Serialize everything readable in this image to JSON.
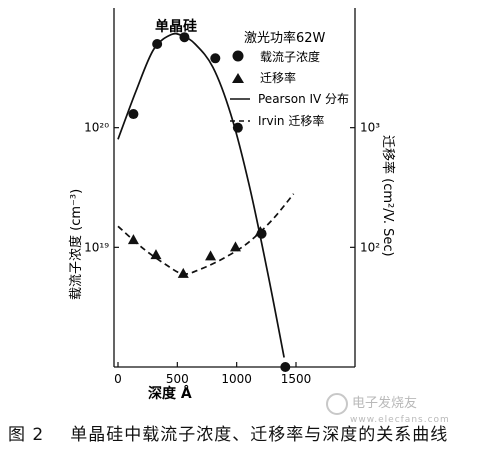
{
  "chart_data": {
    "type": "scatter",
    "title": "单晶硅",
    "annotation": "激光功率62W",
    "xlabel": "深度 Å",
    "ylabel_left": "载流子浓度 (cm⁻³)",
    "ylabel_right": "迁移率 (cm²/V. Sec)",
    "x_ticks": [
      "0",
      "500",
      "1000",
      "1500"
    ],
    "left_ticks": [
      {
        "label": "10²⁰",
        "value": 1e+20
      },
      {
        "label": "10¹⁹",
        "value": 1e+19
      }
    ],
    "right_ticks": [
      {
        "label": "10³",
        "value": 1000
      },
      {
        "label": "10²",
        "value": 100
      }
    ],
    "xlim": [
      -50,
      2000
    ],
    "ylim_left": [
      1e+18,
      1e+21
    ],
    "ylim_right": [
      10,
      10000
    ],
    "log_y": true,
    "grid": false,
    "legend_position": "top-right",
    "series": [
      {
        "name": "载流子浓度",
        "axis": "left",
        "marker": "circle",
        "type": "scatter",
        "x": [
          130,
          330,
          560,
          820,
          1010,
          1210,
          1410
        ],
        "y": [
          1.3e+20,
          5e+20,
          5.7e+20,
          3.8e+20,
          1e+20,
          1.3e+19,
          1e+18
        ]
      },
      {
        "name": "迁移率",
        "axis": "right",
        "marker": "triangle",
        "type": "scatter",
        "x": [
          130,
          320,
          550,
          780,
          990,
          1200
        ],
        "y": [
          115,
          86,
          60,
          84,
          100,
          134
        ]
      },
      {
        "name": "Pearson IV 分布",
        "axis": "left",
        "style": "solid",
        "type": "line",
        "x": [
          0,
          150,
          300,
          450,
          550,
          650,
          800,
          950,
          1100,
          1250,
          1400
        ],
        "y": [
          8e+19,
          2e+20,
          4.5e+20,
          6e+20,
          5.8e+20,
          5e+20,
          3.2e+20,
          1.3e+20,
          3.5e+19,
          7e+18,
          1.2e+18
        ]
      },
      {
        "name": "Irvin 迁移率",
        "axis": "right",
        "style": "dashed",
        "type": "line",
        "x": [
          0,
          200,
          400,
          550,
          700,
          900,
          1100,
          1300,
          1480
        ],
        "y": [
          150,
          100,
          72,
          60,
          66,
          82,
          110,
          170,
          280
        ]
      }
    ]
  },
  "caption": {
    "figure_number": "图 2",
    "text": "单晶硅中载流子浓度、迁移率与深度的关系曲线"
  },
  "watermark": {
    "text": "电子发烧友",
    "site": "www.elecfans.com"
  }
}
